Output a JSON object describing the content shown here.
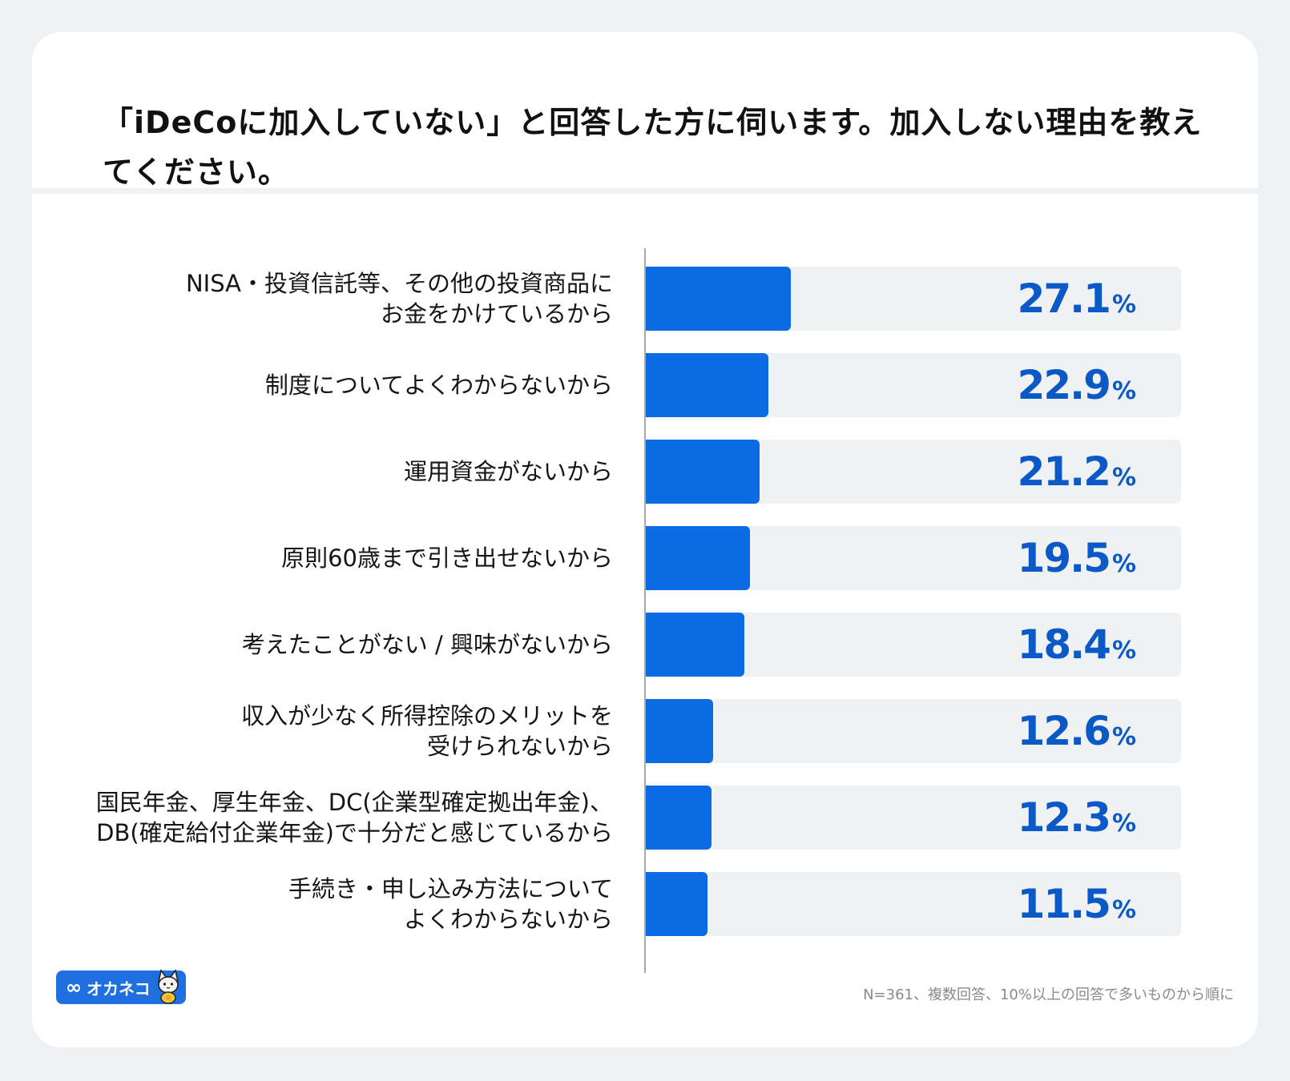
{
  "title": "「iDeCoに加入していない」と回答した方に伺います。加入しない理由を教えてください。",
  "logo": {
    "text": "オカネコ",
    "symbol": "∞",
    "mascot": "cat-mascot-icon"
  },
  "note": "N=361、複数回答、10%以上の回答で多いものから順に",
  "colors": {
    "bar": "#0b6be3",
    "track": "#f0f1f3",
    "value_text": "#0b59c7",
    "logo_bg": "#1f6fe0"
  },
  "chart_data": {
    "type": "bar",
    "orientation": "horizontal",
    "title": "「iDeCoに加入していない」と回答した方に伺います。加入しない理由を教えてください。",
    "categories": [
      "NISA・投資信託等、その他の投資商品に\nお金をかけているから",
      "制度についてよくわからないから",
      "運用資金がないから",
      "原則60歳まで引き出せないから",
      "考えたことがない / 興味がないから",
      "収入が少なく所得控除のメリットを\n受けられないから",
      "国民年金、厚生年金、DC(企業型確定拠出年金)、\nDB(確定給付企業年金)で十分だと感じているから",
      "手続き・申し込み方法について\nよくわからないから"
    ],
    "values": [
      27.1,
      22.9,
      21.2,
      19.5,
      18.4,
      12.6,
      12.3,
      11.5
    ],
    "value_labels": [
      "27.1",
      "22.9",
      "21.2",
      "19.5",
      "18.4",
      "12.6",
      "12.3",
      "11.5"
    ],
    "unit": "%",
    "xlim": [
      0,
      100
    ],
    "xlabel": "",
    "ylabel": ""
  }
}
